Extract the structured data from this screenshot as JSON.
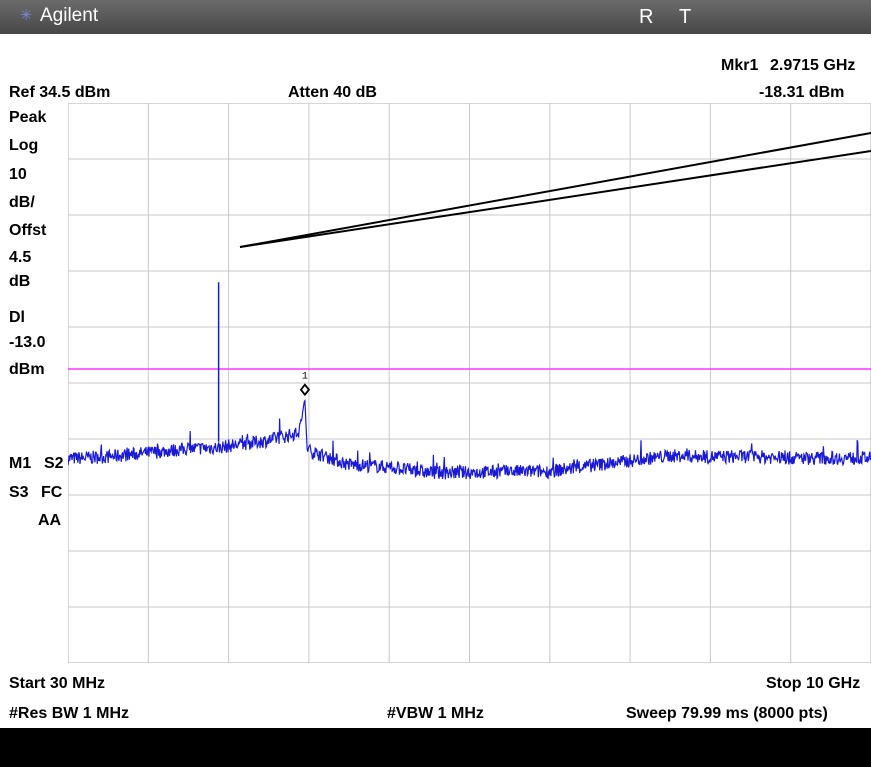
{
  "titlebar": {
    "brand": "Agilent",
    "status_r": "R",
    "status_t": "T",
    "icon": "agilent-spark-icon"
  },
  "header": {
    "marker_label": "Mkr1",
    "marker_freq": "2.9715 GHz",
    "ref_level": "Ref 34.5 dBm",
    "attenuation": "Atten 40 dB",
    "marker_amplitude": "-18.31 dBm"
  },
  "side_labels": {
    "peak": "Peak",
    "log": "Log",
    "scale_value": "10",
    "scale_unit": "dB/",
    "offset": "Offst",
    "offset_value": "4.5",
    "offset_unit": "dB",
    "display_line": "Dl",
    "display_line_value": "-13.0",
    "display_line_unit": "dBm",
    "m1": "M1",
    "s2": "S2",
    "s3": "S3",
    "fc": "FC",
    "aa": "AA"
  },
  "footer": {
    "start": "Start 30 MHz",
    "stop": "Stop 10 GHz",
    "res_bw": "#Res BW 1 MHz",
    "vbw": "#VBW 1 MHz",
    "sweep": "Sweep 79.99 ms (8000 pts)"
  },
  "marker": {
    "number": "1",
    "freq_ghz": 2.9715,
    "amplitude_dbm": -18.31
  },
  "colors": {
    "trace": "#1a1ad6",
    "display_line": "#ff33ff",
    "grid": "#c8c8c8",
    "titlebar": "#5a5a5a"
  },
  "chart_data": {
    "type": "line",
    "x_range_mhz": [
      30,
      10000
    ],
    "y_ref_dbm": 34.5,
    "y_scale_db_per_div": 10,
    "divisions": 10,
    "display_line_dbm": -13.0,
    "spur": {
      "freq_ghz": 1.9,
      "amplitude_dbm": 2.5
    },
    "series": [
      {
        "x_ghz": [
          0.03,
          0.5,
          1.0,
          1.5,
          1.9,
          2.5,
          2.9,
          2.97,
          3.0,
          3.5,
          4.0,
          4.5,
          5.0,
          5.5,
          6.0,
          6.5,
          7.0,
          7.5,
          8.0,
          8.5,
          9.0,
          9.5,
          10.0
        ],
        "y_dbm": [
          -29,
          -28.7,
          -28,
          -27.3,
          -27,
          -25.8,
          -24.4,
          -18.31,
          -27.5,
          -30,
          -30.5,
          -31.5,
          -31.5,
          -31.3,
          -31.3,
          -30.3,
          -29.4,
          -28.5,
          -28.7,
          -28.6,
          -28.9,
          -28.9,
          -28.9
        ]
      }
    ]
  }
}
